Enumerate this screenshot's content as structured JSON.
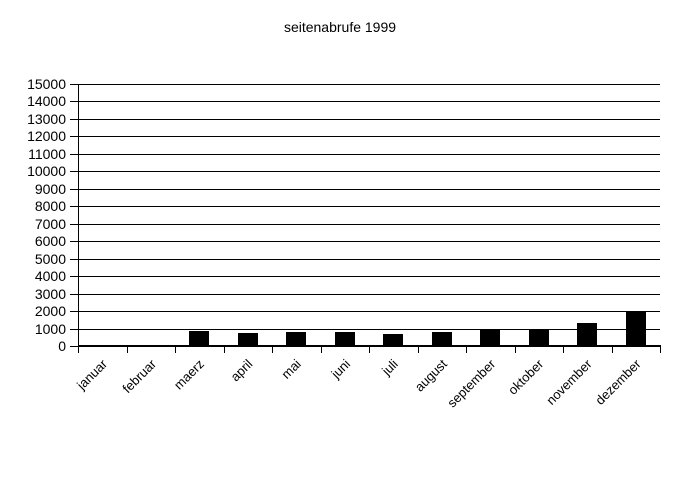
{
  "window": {
    "background_color": "#ffffff",
    "foreground_color": "#000000"
  },
  "chart_data": {
    "type": "bar",
    "title": "seitenabrufe 1999",
    "categories": [
      "januar",
      "februar",
      "maerz",
      "april",
      "mai",
      "juni",
      "juli",
      "august",
      "september",
      "oktober",
      "november",
      "dezember"
    ],
    "values": [
      0,
      80,
      850,
      750,
      800,
      800,
      680,
      800,
      980,
      950,
      1300,
      1950
    ],
    "series_name": "seitenabrufe",
    "bar_color": "#000000",
    "xlabel": "",
    "ylabel": "",
    "ylim": [
      0,
      15000
    ],
    "ytick_step": 1000,
    "ytick_labels": [
      "0",
      "1000",
      "2000",
      "3000",
      "4000",
      "5000",
      "6000",
      "7000",
      "8000",
      "9000",
      "10000",
      "11000",
      "12000",
      "13000",
      "14000",
      "15000"
    ],
    "grid": "horizontal",
    "legend": "none",
    "x_label_rotation_deg": -45
  }
}
